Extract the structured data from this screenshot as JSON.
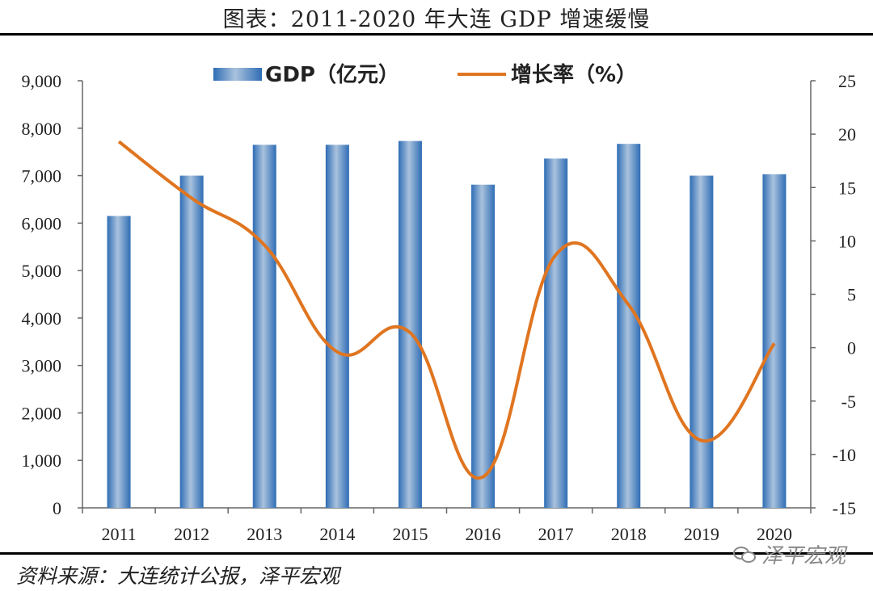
{
  "title": "图表：2011-2020 年大连 GDP 增速缓慢",
  "source": "资料来源：大连统计公报，泽平宏观",
  "watermark": "泽平宏观",
  "colors": {
    "bar": "#3a78c0",
    "line": "#e07520"
  },
  "chart_data": {
    "type": "bar",
    "categories": [
      "2011",
      "2012",
      "2013",
      "2014",
      "2015",
      "2016",
      "2017",
      "2018",
      "2019",
      "2020"
    ],
    "series": [
      {
        "name": "GDP（亿元）",
        "type": "bar",
        "axis": "left",
        "values": [
          6150,
          7000,
          7650,
          7650,
          7730,
          6810,
          7360,
          7670,
          7000,
          7030
        ]
      },
      {
        "name": "增长率（%）",
        "type": "line",
        "axis": "right",
        "values": [
          19.3,
          14.0,
          9.6,
          -0.4,
          1.4,
          -12.1,
          8.7,
          4.0,
          -8.7,
          0.4
        ]
      }
    ],
    "ylim_left": [
      0,
      9000
    ],
    "ylim_right": [
      -15,
      25
    ],
    "left_ticks": [
      "0",
      "1,000",
      "2,000",
      "3,000",
      "4,000",
      "5,000",
      "6,000",
      "7,000",
      "8,000",
      "9,000"
    ],
    "right_ticks": [
      "-15",
      "-10",
      "-5",
      "0",
      "5",
      "10",
      "15",
      "20",
      "25"
    ],
    "legend_position": "top-center",
    "grid": false
  }
}
